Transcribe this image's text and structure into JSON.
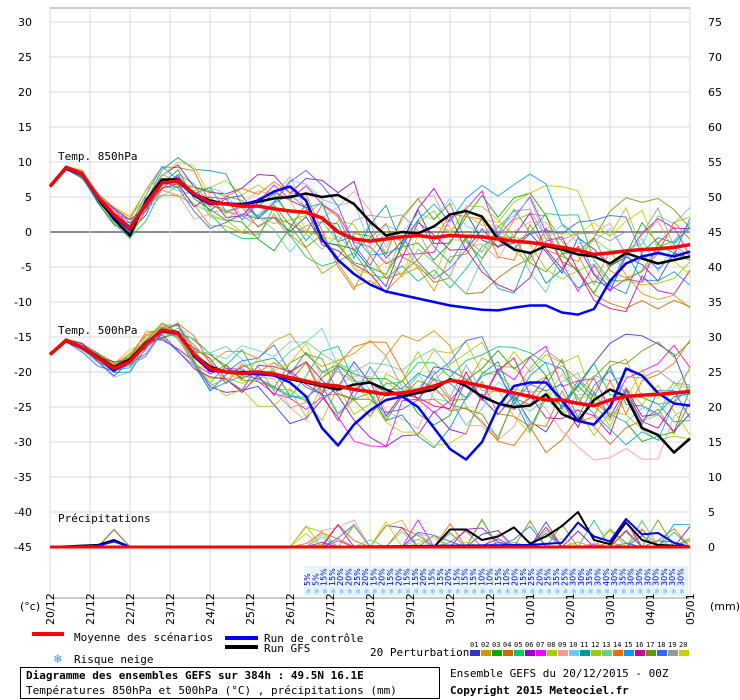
{
  "chart_data": {
    "type": "line",
    "panels": [
      {
        "title": "Temp. 850hPa",
        "axis": "left °C"
      },
      {
        "title": "Temp. 500hPa",
        "axis": "left °C"
      },
      {
        "title": "Précipitations",
        "axis": "right mm"
      }
    ],
    "left_ticks": [
      "30",
      "25",
      "20",
      "15",
      "10",
      "5",
      "0",
      "-5",
      "-10",
      "-15",
      "-20",
      "-25",
      "-30",
      "-35",
      "-40",
      "-45"
    ],
    "right_ticks": [
      "75",
      "70",
      "65",
      "60",
      "55",
      "50",
      "45",
      "40",
      "35",
      "30",
      "25",
      "20",
      "15",
      "10",
      "5",
      "0"
    ],
    "left_unit": "(°c)",
    "right_unit": "(mm)",
    "x_dates": [
      "20/12",
      "21/12",
      "22/12",
      "23/12",
      "24/12",
      "25/12",
      "26/12",
      "27/12",
      "28/12",
      "29/12",
      "30/12",
      "31/12",
      "01/01",
      "02/01",
      "03/01",
      "04/01",
      "05/01"
    ],
    "snow_risk": [
      "5%",
      "5%",
      "15%",
      "15%",
      "20%",
      "20%",
      "25%",
      "20%",
      "15%",
      "20%",
      "15%",
      "20%",
      "15%",
      "15%",
      "20%",
      "15%",
      "15%",
      "20%",
      "15%",
      "15%",
      "15%",
      "10%",
      "10%",
      "15%",
      "10%",
      "20%",
      "15%",
      "25%",
      "20%",
      "25%",
      "35%",
      "25%",
      "30%",
      "30%",
      "35%",
      "30%",
      "40%",
      "30%",
      "35%",
      "30%",
      "30%",
      "30%",
      "30%",
      "30%",
      "30%",
      "30%"
    ],
    "t850_mean": [
      [
        0,
        6.5
      ],
      [
        4,
        9.2
      ],
      [
        8,
        8.3
      ],
      [
        12,
        5
      ],
      [
        16,
        2.5
      ],
      [
        20,
        0.5
      ],
      [
        24,
        4
      ],
      [
        28,
        7
      ],
      [
        32,
        7.3
      ],
      [
        36,
        5.5
      ],
      [
        40,
        4.2
      ],
      [
        44,
        4
      ],
      [
        48,
        3.7
      ],
      [
        52,
        3.7
      ],
      [
        56,
        3.3
      ],
      [
        60,
        3
      ],
      [
        64,
        2.8
      ],
      [
        68,
        2
      ],
      [
        72,
        0
      ],
      [
        76,
        -1
      ],
      [
        80,
        -1.3
      ],
      [
        84,
        -1
      ],
      [
        88,
        -0.7
      ],
      [
        92,
        -0.5
      ],
      [
        96,
        -0.8
      ],
      [
        100,
        -0.5
      ],
      [
        104,
        -0.6
      ],
      [
        108,
        -0.7
      ],
      [
        112,
        -1
      ],
      [
        116,
        -1.3
      ],
      [
        120,
        -1.5
      ],
      [
        124,
        -1.8
      ],
      [
        128,
        -2.2
      ],
      [
        132,
        -2.6
      ],
      [
        136,
        -3.2
      ],
      [
        140,
        -3
      ],
      [
        144,
        -2.7
      ],
      [
        148,
        -2.5
      ],
      [
        152,
        -2.4
      ],
      [
        156,
        -2.2
      ],
      [
        160,
        -1.8
      ]
    ],
    "t850_control": [
      [
        0,
        6.5
      ],
      [
        4,
        9
      ],
      [
        8,
        8.2
      ],
      [
        12,
        5
      ],
      [
        16,
        2.2
      ],
      [
        20,
        0.3
      ],
      [
        24,
        4.2
      ],
      [
        28,
        7
      ],
      [
        32,
        7.2
      ],
      [
        36,
        5.2
      ],
      [
        40,
        4
      ],
      [
        44,
        4.1
      ],
      [
        48,
        3.9
      ],
      [
        52,
        4.5
      ],
      [
        56,
        5.8
      ],
      [
        60,
        6.5
      ],
      [
        64,
        4.5
      ],
      [
        68,
        -1
      ],
      [
        72,
        -4
      ],
      [
        76,
        -6
      ],
      [
        80,
        -7.5
      ],
      [
        84,
        -8.5
      ],
      [
        88,
        -9
      ],
      [
        92,
        -9.5
      ],
      [
        96,
        -10
      ],
      [
        100,
        -10.5
      ],
      [
        104,
        -10.8
      ],
      [
        108,
        -11.1
      ],
      [
        112,
        -11.2
      ],
      [
        116,
        -10.8
      ],
      [
        120,
        -10.5
      ],
      [
        124,
        -10.5
      ],
      [
        128,
        -11.5
      ],
      [
        132,
        -11.8
      ],
      [
        136,
        -11
      ],
      [
        140,
        -7
      ],
      [
        144,
        -4.5
      ],
      [
        148,
        -3.5
      ],
      [
        152,
        -3
      ],
      [
        156,
        -3.5
      ],
      [
        160,
        -2.8
      ]
    ],
    "t850_gfs": [
      [
        0,
        6.5
      ],
      [
        4,
        9.3
      ],
      [
        8,
        8.4
      ],
      [
        12,
        4.8
      ],
      [
        16,
        1.8
      ],
      [
        20,
        -0.5
      ],
      [
        24,
        4.5
      ],
      [
        28,
        7.5
      ],
      [
        32,
        7.5
      ],
      [
        36,
        5.5
      ],
      [
        40,
        4.5
      ],
      [
        44,
        4
      ],
      [
        48,
        4
      ],
      [
        52,
        4.3
      ],
      [
        56,
        4.8
      ],
      [
        60,
        5
      ],
      [
        64,
        5.5
      ],
      [
        68,
        5
      ],
      [
        72,
        5.3
      ],
      [
        76,
        4
      ],
      [
        80,
        1.5
      ],
      [
        84,
        -0.5
      ],
      [
        88,
        0
      ],
      [
        92,
        -0.2
      ],
      [
        96,
        0.8
      ],
      [
        100,
        2.5
      ],
      [
        104,
        3
      ],
      [
        108,
        2.2
      ],
      [
        112,
        -1
      ],
      [
        116,
        -2.5
      ],
      [
        120,
        -3
      ],
      [
        124,
        -2
      ],
      [
        128,
        -2.5
      ],
      [
        132,
        -3.2
      ],
      [
        136,
        -3.5
      ],
      [
        140,
        -4.5
      ],
      [
        144,
        -3
      ],
      [
        148,
        -3.8
      ],
      [
        152,
        -4.5
      ],
      [
        156,
        -4
      ],
      [
        160,
        -3.5
      ]
    ],
    "t500_mean": [
      [
        0,
        -17.5
      ],
      [
        4,
        -15.5
      ],
      [
        8,
        -16.5
      ],
      [
        12,
        -18
      ],
      [
        16,
        -19.5
      ],
      [
        20,
        -18.5
      ],
      [
        24,
        -16
      ],
      [
        28,
        -14
      ],
      [
        32,
        -14.5
      ],
      [
        36,
        -17.5
      ],
      [
        40,
        -19.5
      ],
      [
        44,
        -20
      ],
      [
        48,
        -20.2
      ],
      [
        52,
        -20
      ],
      [
        56,
        -20.3
      ],
      [
        60,
        -20.8
      ],
      [
        64,
        -21.3
      ],
      [
        68,
        -21.8
      ],
      [
        72,
        -22
      ],
      [
        76,
        -22.5
      ],
      [
        80,
        -22.8
      ],
      [
        84,
        -23.2
      ],
      [
        88,
        -23
      ],
      [
        92,
        -22.6
      ],
      [
        96,
        -22
      ],
      [
        100,
        -21.2
      ],
      [
        104,
        -21.5
      ],
      [
        108,
        -22
      ],
      [
        112,
        -22.5
      ],
      [
        116,
        -23
      ],
      [
        120,
        -23.5
      ],
      [
        124,
        -24
      ],
      [
        128,
        -24
      ],
      [
        132,
        -24.5
      ],
      [
        136,
        -24.8
      ],
      [
        140,
        -24
      ],
      [
        144,
        -23.5
      ],
      [
        148,
        -23.3
      ],
      [
        152,
        -23.2
      ],
      [
        156,
        -23
      ],
      [
        160,
        -22.8
      ]
    ],
    "t500_control": [
      [
        0,
        -17.5
      ],
      [
        4,
        -15.6
      ],
      [
        8,
        -16.6
      ],
      [
        12,
        -18
      ],
      [
        16,
        -19.8
      ],
      [
        20,
        -18.5
      ],
      [
        24,
        -16
      ],
      [
        28,
        -14
      ],
      [
        32,
        -14.3
      ],
      [
        36,
        -17.8
      ],
      [
        40,
        -19.8
      ],
      [
        44,
        -20
      ],
      [
        48,
        -20.2
      ],
      [
        52,
        -20.3
      ],
      [
        56,
        -20.5
      ],
      [
        60,
        -21.5
      ],
      [
        64,
        -23.5
      ],
      [
        68,
        -28
      ],
      [
        72,
        -30.5
      ],
      [
        76,
        -27.5
      ],
      [
        80,
        -25.5
      ],
      [
        84,
        -24
      ],
      [
        88,
        -23.5
      ],
      [
        92,
        -25
      ],
      [
        96,
        -28
      ],
      [
        100,
        -31
      ],
      [
        104,
        -32.5
      ],
      [
        108,
        -30
      ],
      [
        112,
        -25
      ],
      [
        116,
        -22
      ],
      [
        120,
        -21.5
      ],
      [
        124,
        -21.5
      ],
      [
        128,
        -24
      ],
      [
        132,
        -27
      ],
      [
        136,
        -27.5
      ],
      [
        140,
        -25
      ],
      [
        144,
        -19.5
      ],
      [
        148,
        -20.5
      ],
      [
        152,
        -23
      ],
      [
        156,
        -24.5
      ],
      [
        160,
        -24.8
      ]
    ],
    "t500_gfs": [
      [
        0,
        -17.5
      ],
      [
        4,
        -15.4
      ],
      [
        8,
        -16.5
      ],
      [
        12,
        -17.8
      ],
      [
        16,
        -19.3
      ],
      [
        20,
        -18.2
      ],
      [
        24,
        -15.8
      ],
      [
        28,
        -14.2
      ],
      [
        32,
        -14.5
      ],
      [
        36,
        -17.5
      ],
      [
        40,
        -19.2
      ],
      [
        44,
        -20
      ],
      [
        48,
        -20
      ],
      [
        52,
        -20
      ],
      [
        56,
        -20.3
      ],
      [
        60,
        -21
      ],
      [
        64,
        -21.5
      ],
      [
        68,
        -22
      ],
      [
        72,
        -22.5
      ],
      [
        76,
        -21.8
      ],
      [
        80,
        -21.5
      ],
      [
        84,
        -22.5
      ],
      [
        88,
        -23.5
      ],
      [
        92,
        -23
      ],
      [
        96,
        -22.5
      ],
      [
        100,
        -21
      ],
      [
        104,
        -22
      ],
      [
        108,
        -23.5
      ],
      [
        112,
        -24.5
      ],
      [
        116,
        -25
      ],
      [
        120,
        -24.8
      ],
      [
        124,
        -23.2
      ],
      [
        128,
        -26
      ],
      [
        132,
        -27
      ],
      [
        136,
        -24
      ],
      [
        140,
        -22.5
      ],
      [
        144,
        -23.5
      ],
      [
        148,
        -28
      ],
      [
        152,
        -29
      ],
      [
        156,
        -31.5
      ],
      [
        160,
        -29.5
      ]
    ],
    "precip_control": [
      [
        0,
        0
      ],
      [
        12,
        0.2
      ],
      [
        16,
        0.8
      ],
      [
        20,
        0
      ],
      [
        60,
        0
      ],
      [
        80,
        0.1
      ],
      [
        100,
        0.2
      ],
      [
        120,
        0.3
      ],
      [
        128,
        0.6
      ],
      [
        132,
        3.5
      ],
      [
        136,
        1.5
      ],
      [
        140,
        0.8
      ],
      [
        144,
        4
      ],
      [
        148,
        1.8
      ],
      [
        152,
        2
      ],
      [
        156,
        0.6
      ],
      [
        160,
        0
      ]
    ],
    "precip_gfs": [
      [
        0,
        0
      ],
      [
        12,
        0.3
      ],
      [
        16,
        1
      ],
      [
        20,
        0
      ],
      [
        80,
        0
      ],
      [
        96,
        0
      ],
      [
        100,
        2.5
      ],
      [
        104,
        2.5
      ],
      [
        108,
        1
      ],
      [
        112,
        1.5
      ],
      [
        116,
        2.8
      ],
      [
        120,
        0.5
      ],
      [
        124,
        1.5
      ],
      [
        128,
        3
      ],
      [
        132,
        5
      ],
      [
        136,
        1
      ],
      [
        140,
        0.4
      ],
      [
        144,
        3.5
      ],
      [
        148,
        1
      ],
      [
        152,
        0.3
      ],
      [
        156,
        0.2
      ],
      [
        160,
        0
      ]
    ],
    "legend": {
      "mean": "Moyenne des scénarios",
      "control": "Run de contrôle",
      "gfs": "Run GFS",
      "snow": "Risque neige",
      "perturbations": "20 Perturbations",
      "pert_numbers": [
        "01",
        "02",
        "03",
        "04",
        "05",
        "06",
        "07",
        "08",
        "09",
        "10",
        "11",
        "12",
        "13",
        "14",
        "15",
        "16",
        "17",
        "18",
        "19",
        "20"
      ]
    },
    "colors": {
      "mean": "#ff0000",
      "control": "#0000ff",
      "gfs": "#000000",
      "perturbations": [
        "#3333cc",
        "#cc9900",
        "#00aa00",
        "#cc6600",
        "#00cc66",
        "#9900cc",
        "#ff00ff",
        "#aacc00",
        "#ff9999",
        "#66ccff",
        "#009999",
        "#99cc00",
        "#66cc99",
        "#ff6600",
        "#0099ff",
        "#cc0099",
        "#669900",
        "#3366ff",
        "#999999",
        "#cccc00"
      ]
    }
  },
  "footer": {
    "title": "Diagramme des ensembles GEFS sur 384h : 49.5N 16.1E",
    "subtitle": "Températures 850hPa et 500hPa (°C) , précipitations (mm)",
    "run": "Ensemble GEFS du 20/12/2015 - 00Z",
    "copyright": "Copyright 2015 Meteociel.fr"
  }
}
